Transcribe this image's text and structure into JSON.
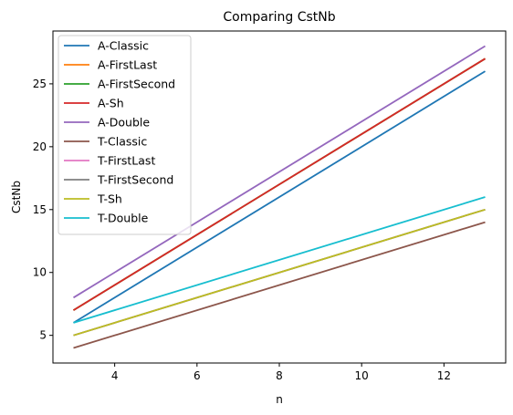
{
  "chart_data": {
    "type": "line",
    "title": "Comparing CstNb",
    "xlabel": "n",
    "ylabel": "CstNb",
    "xlim": [
      2.5,
      13.5
    ],
    "ylim": [
      2.8,
      29.2
    ],
    "xticks": [
      4,
      6,
      8,
      10,
      12
    ],
    "yticks": [
      5,
      10,
      15,
      20,
      25
    ],
    "grid": false,
    "legend_position": "top-left",
    "series": [
      {
        "name": "A-Classic",
        "color": "#1f77b4",
        "x": [
          3,
          13
        ],
        "y": [
          6,
          26
        ]
      },
      {
        "name": "A-FirstLast",
        "color": "#ff7f0e",
        "x": [
          3,
          13
        ],
        "y": [
          7,
          27
        ]
      },
      {
        "name": "A-FirstSecond",
        "color": "#2ca02c",
        "x": [
          3,
          13
        ],
        "y": [
          7,
          27
        ]
      },
      {
        "name": "A-Sh",
        "color": "#d62728",
        "x": [
          3,
          13
        ],
        "y": [
          7,
          27
        ]
      },
      {
        "name": "A-Double",
        "color": "#9467bd",
        "x": [
          3,
          13
        ],
        "y": [
          8,
          28
        ]
      },
      {
        "name": "T-Classic",
        "color": "#8c564b",
        "x": [
          3,
          13
        ],
        "y": [
          4,
          14
        ]
      },
      {
        "name": "T-FirstLast",
        "color": "#e377c2",
        "x": [
          3,
          13
        ],
        "y": [
          5,
          15
        ]
      },
      {
        "name": "T-FirstSecond",
        "color": "#7f7f7f",
        "x": [
          3,
          13
        ],
        "y": [
          5,
          15
        ]
      },
      {
        "name": "T-Sh",
        "color": "#bcbd22",
        "x": [
          3,
          13
        ],
        "y": [
          5,
          15
        ]
      },
      {
        "name": "T-Double",
        "color": "#17becf",
        "x": [
          3,
          13
        ],
        "y": [
          6,
          16
        ]
      }
    ]
  }
}
